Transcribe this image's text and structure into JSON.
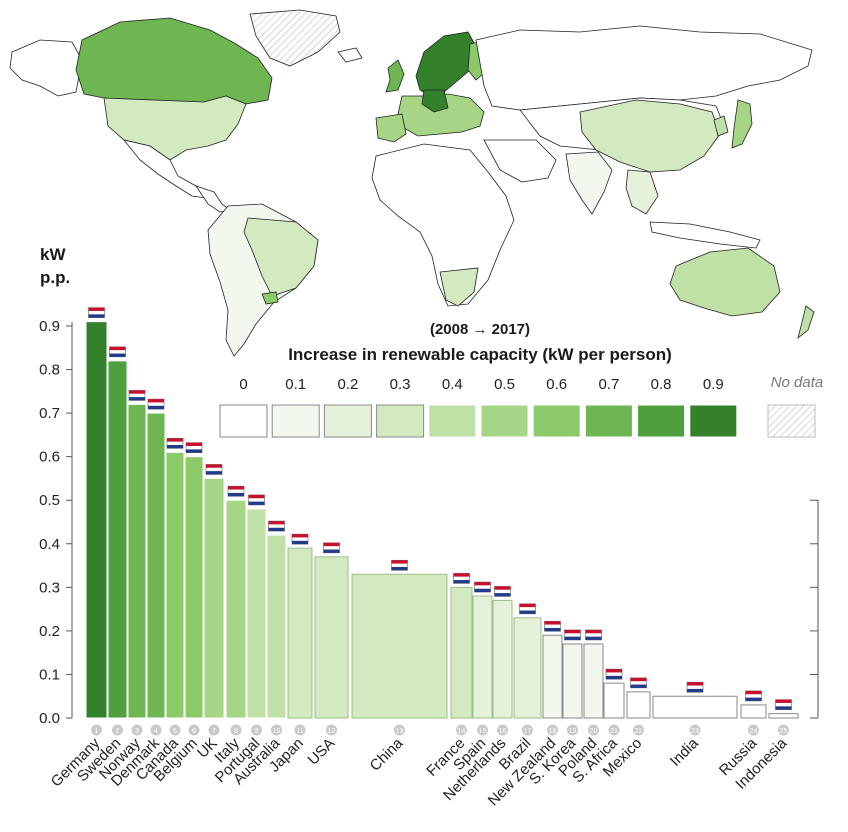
{
  "chart_data": {
    "type": "bar",
    "subtitle": "(2008 → 2017)",
    "ylabel_line1": "kW",
    "ylabel_line2": "p.p.",
    "ylim": [
      0,
      0.9
    ],
    "yticks": [
      "0.0",
      "0.1",
      "0.2",
      "0.3",
      "0.4",
      "0.5",
      "0.6",
      "0.7",
      "0.8",
      "0.9"
    ],
    "bar_width_encodes": "population",
    "categories": [
      "Germany",
      "Sweden",
      "Norway",
      "Denmark",
      "Canada",
      "Belgium",
      "UK",
      "Italy",
      "Portugal",
      "Australia",
      "Japan",
      "USA",
      "China",
      "France",
      "Spain",
      "Netherlands",
      "Brazil",
      "New Zealand",
      "S. Korea",
      "Poland",
      "S. Africa",
      "Mexico",
      "India",
      "Russia",
      "Indonesia"
    ],
    "ranks": [
      "1",
      "2",
      "3",
      "4",
      "5",
      "6",
      "7",
      "8",
      "9",
      "10",
      "11",
      "12",
      "13",
      "14",
      "15",
      "16",
      "17",
      "18",
      "19",
      "20",
      "21",
      "22",
      "23",
      "24",
      "25"
    ],
    "values": [
      0.91,
      0.82,
      0.72,
      0.7,
      0.61,
      0.6,
      0.55,
      0.5,
      0.48,
      0.42,
      0.39,
      0.37,
      0.33,
      0.3,
      0.28,
      0.27,
      0.23,
      0.19,
      0.17,
      0.17,
      0.08,
      0.06,
      0.05,
      0.03,
      0.01
    ],
    "legend": {
      "title": "Increase in renewable capacity (kW per person)",
      "labels": [
        "0",
        "0.1",
        "0.2",
        "0.3",
        "0.4",
        "0.5",
        "0.6",
        "0.7",
        "0.8",
        "0.9"
      ],
      "colors": [
        "#ffffff",
        "#f3f8ee",
        "#e5f1da",
        "#d3eac1",
        "#bfe1a5",
        "#a6d586",
        "#8cc969",
        "#6db651",
        "#4e9f3d",
        "#34812c"
      ],
      "nodata_label": "No data",
      "placement": "top-right"
    }
  }
}
